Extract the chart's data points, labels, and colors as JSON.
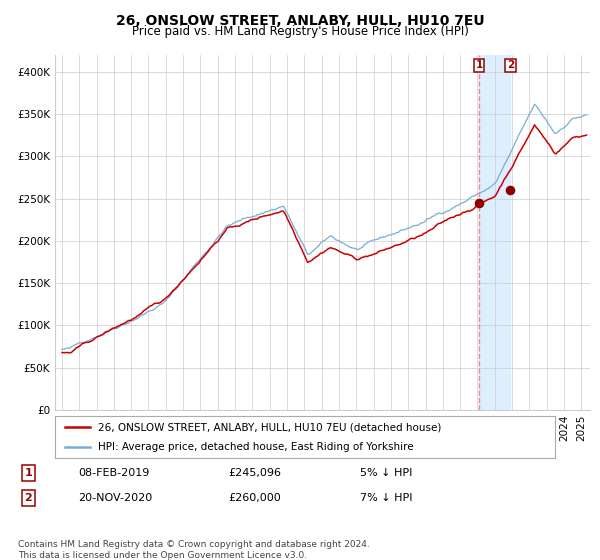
{
  "title": "26, ONSLOW STREET, ANLABY, HULL, HU10 7EU",
  "subtitle": "Price paid vs. HM Land Registry's House Price Index (HPI)",
  "ylim": [
    0,
    420000
  ],
  "yticks": [
    0,
    50000,
    100000,
    150000,
    200000,
    250000,
    300000,
    350000,
    400000
  ],
  "ytick_labels": [
    "£0",
    "£50K",
    "£100K",
    "£150K",
    "£200K",
    "£250K",
    "£300K",
    "£350K",
    "£400K"
  ],
  "hpi_color": "#7aadd4",
  "price_color": "#cc0000",
  "marker_color": "#8b0000",
  "highlight_color": "#ddeeff",
  "dashed_line_color": "#ee8888",
  "grid_color": "#cccccc",
  "background_color": "#ffffff",
  "sale1_date": 2019.1,
  "sale1_price": 245096,
  "sale2_date": 2020.9,
  "sale2_price": 260000,
  "legend_label1": "26, ONSLOW STREET, ANLABY, HULL, HU10 7EU (detached house)",
  "legend_label2": "HPI: Average price, detached house, East Riding of Yorkshire",
  "table_row1": [
    "1",
    "08-FEB-2019",
    "£245,096",
    "5% ↓ HPI"
  ],
  "table_row2": [
    "2",
    "20-NOV-2020",
    "£260,000",
    "7% ↓ HPI"
  ],
  "footnote": "Contains HM Land Registry data © Crown copyright and database right 2024.\nThis data is licensed under the Open Government Licence v3.0.",
  "title_fontsize": 10,
  "subtitle_fontsize": 8.5,
  "tick_fontsize": 7.5,
  "legend_fontsize": 7.5,
  "table_fontsize": 8,
  "footnote_fontsize": 6.5
}
